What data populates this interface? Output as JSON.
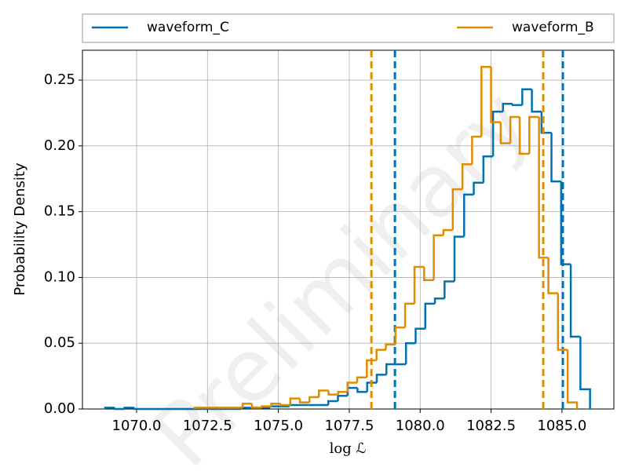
{
  "chart_data": {
    "type": "histogram",
    "xlabel": "log ℒ",
    "ylabel": "Probability Density",
    "watermark": "Preliminary",
    "xlim": [
      1068.09,
      1086.83
    ],
    "ylim": [
      0,
      0.2727
    ],
    "xticks": [
      {
        "value": 1070,
        "label": "1070.0"
      },
      {
        "value": 1072.5,
        "label": "1072.5"
      },
      {
        "value": 1075,
        "label": "1075.0"
      },
      {
        "value": 1077.5,
        "label": "1077.5"
      },
      {
        "value": 1080,
        "label": "1080.0"
      },
      {
        "value": 1082.5,
        "label": "1082.5"
      },
      {
        "value": 1085,
        "label": "1085.0"
      }
    ],
    "yticks": [
      {
        "value": 0,
        "label": "0.00"
      },
      {
        "value": 0.05,
        "label": "0.05"
      },
      {
        "value": 0.1,
        "label": "0.10"
      },
      {
        "value": 0.15,
        "label": "0.15"
      },
      {
        "value": 0.2,
        "label": "0.20"
      },
      {
        "value": 0.25,
        "label": "0.25"
      }
    ],
    "grid": true,
    "legend": "top",
    "series": [
      {
        "name": "waveform_C",
        "color": "#0072b2",
        "bins": [
          1068.89,
          1069.23,
          1069.57,
          1069.92,
          1070.26,
          1070.6,
          1070.94,
          1071.28,
          1071.63,
          1071.97,
          1072.31,
          1072.65,
          1073.0,
          1073.34,
          1073.68,
          1074.02,
          1074.36,
          1074.71,
          1075.05,
          1075.39,
          1075.73,
          1076.07,
          1076.42,
          1076.76,
          1077.1,
          1077.44,
          1077.79,
          1078.13,
          1078.47,
          1078.81,
          1079.15,
          1079.5,
          1079.84,
          1080.18,
          1080.52,
          1080.86,
          1081.21,
          1081.55,
          1081.89,
          1082.23,
          1082.57,
          1082.92,
          1083.26,
          1083.6,
          1083.94,
          1084.28,
          1084.63,
          1084.97,
          1085.31,
          1085.65,
          1085.99
        ],
        "values": [
          0.001,
          0,
          0.001,
          0,
          0,
          0,
          0,
          0,
          0,
          0,
          0,
          0,
          0,
          0,
          0.001,
          0.001,
          0.001,
          0.002,
          0.002,
          0.003,
          0.003,
          0.003,
          0.003,
          0.006,
          0.01,
          0.016,
          0.013,
          0.02,
          0.026,
          0.034,
          0.034,
          0.05,
          0.061,
          0.08,
          0.084,
          0.097,
          0.131,
          0.163,
          0.172,
          0.192,
          0.226,
          0.232,
          0.231,
          0.243,
          0.226,
          0.21,
          0.173,
          0.11,
          0.055,
          0.015
        ],
        "quantiles": [
          1079.11,
          1085.03
        ]
      },
      {
        "name": "waveform_B",
        "color": "#e08c00",
        "bins": [
          1072.05,
          1072.39,
          1072.72,
          1073.06,
          1073.4,
          1073.74,
          1074.07,
          1074.41,
          1074.75,
          1075.08,
          1075.42,
          1075.76,
          1076.1,
          1076.43,
          1076.77,
          1077.11,
          1077.44,
          1077.78,
          1078.12,
          1078.46,
          1078.79,
          1079.13,
          1079.47,
          1079.8,
          1080.14,
          1080.48,
          1080.82,
          1081.15,
          1081.49,
          1081.83,
          1082.16,
          1082.5,
          1082.84,
          1083.18,
          1083.51,
          1083.85,
          1084.19,
          1084.52,
          1084.86,
          1085.2,
          1085.53
        ],
        "values": [
          0.001,
          0.001,
          0.001,
          0.001,
          0.001,
          0.004,
          0.001,
          0.002,
          0.004,
          0.003,
          0.008,
          0.005,
          0.009,
          0.014,
          0.011,
          0.013,
          0.02,
          0.024,
          0.037,
          0.045,
          0.049,
          0.062,
          0.08,
          0.108,
          0.098,
          0.132,
          0.136,
          0.167,
          0.186,
          0.207,
          0.26,
          0.218,
          0.202,
          0.222,
          0.194,
          0.222,
          0.115,
          0.088,
          0.045,
          0.005
        ],
        "quantiles": [
          1078.28,
          1084.34
        ]
      }
    ]
  }
}
